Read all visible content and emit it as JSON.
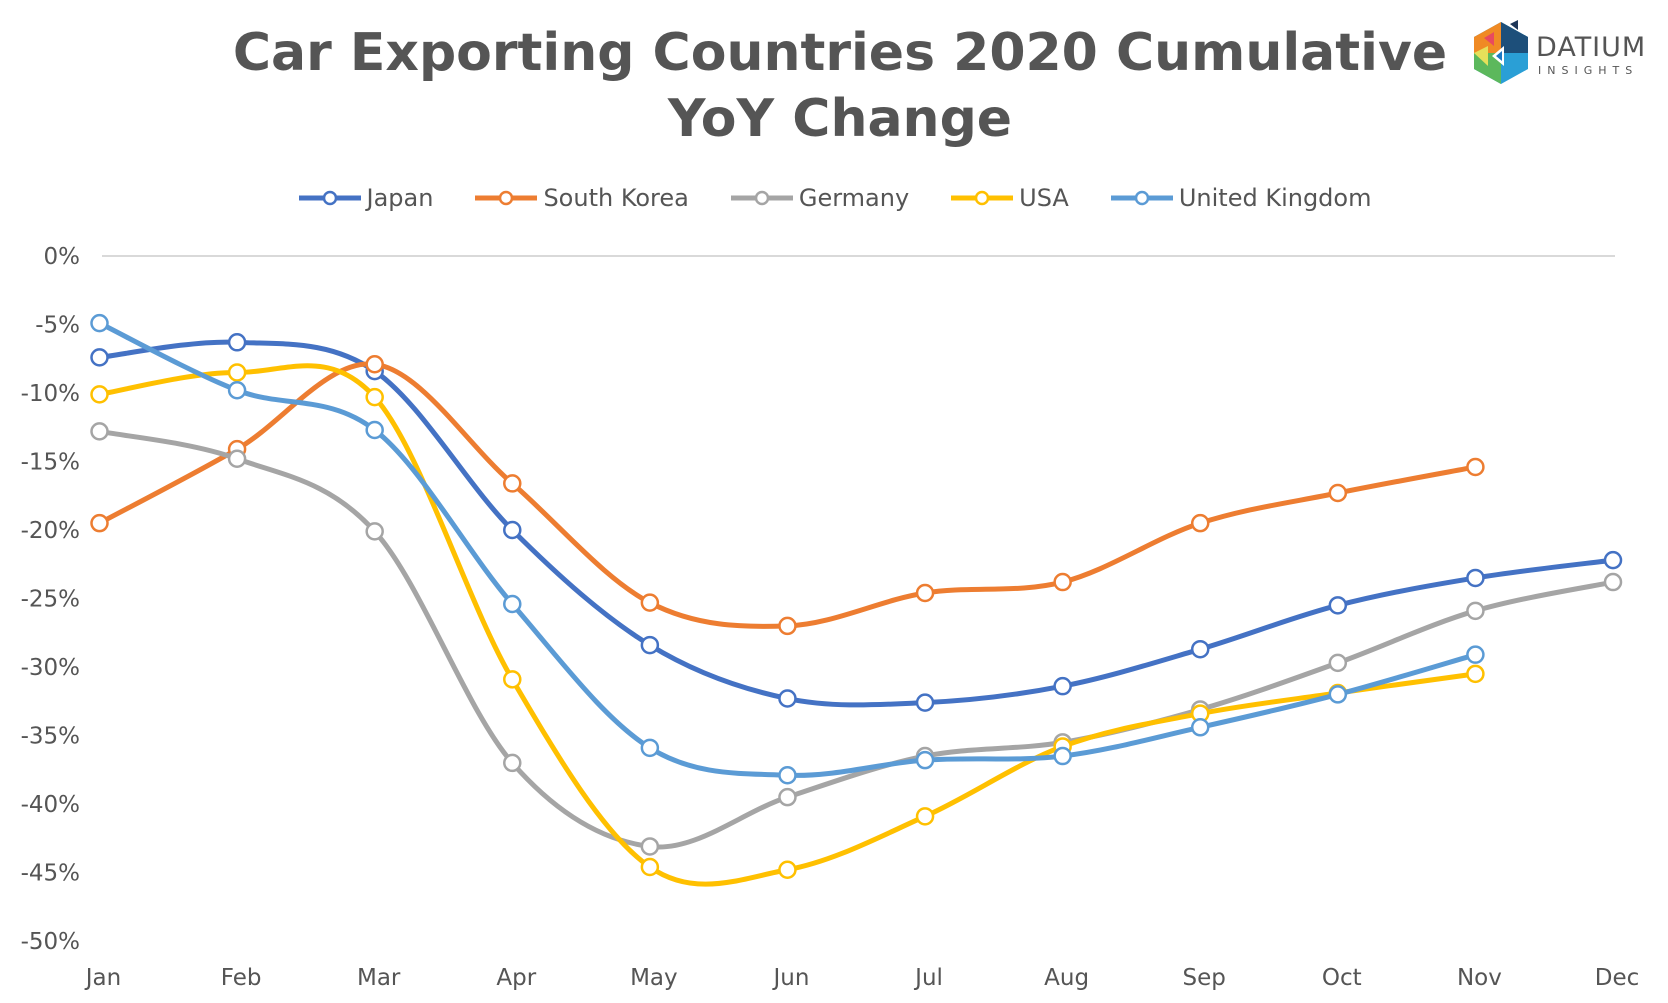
{
  "chart_data": {
    "type": "line",
    "title": "Car Exporting Countries 2020 Cumulative YoY Change",
    "xlabel": "",
    "ylabel": "",
    "categories": [
      "Jan",
      "Feb",
      "Mar",
      "Apr",
      "May",
      "Jun",
      "Jul",
      "Aug",
      "Sep",
      "Oct",
      "Nov",
      "Dec"
    ],
    "ylim": [
      -50,
      0
    ],
    "yticks": [
      0,
      -5,
      -10,
      -15,
      -20,
      -25,
      -30,
      -35,
      -40,
      -45,
      -50
    ],
    "ytick_labels": [
      "0%",
      "-5%",
      "-10%",
      "-15%",
      "-20%",
      "-25%",
      "-30%",
      "-35%",
      "-40%",
      "-45%",
      "-50%"
    ],
    "grid": "zero-line only",
    "legend_position": "top",
    "smooth": true,
    "series": [
      {
        "name": "Japan",
        "color": "#4472C4",
        "values": [
          -7.4,
          -6.3,
          -8.4,
          -20.0,
          -28.4,
          -32.3,
          -32.6,
          -31.4,
          -28.7,
          -25.5,
          -23.5,
          -22.2
        ]
      },
      {
        "name": "South Korea",
        "color": "#ED7D31",
        "values": [
          -19.5,
          -14.1,
          -7.9,
          -16.6,
          -25.3,
          -27.0,
          -24.6,
          -23.8,
          -19.5,
          -17.3,
          -15.4,
          null
        ]
      },
      {
        "name": "Germany",
        "color": "#A5A5A5",
        "values": [
          -12.8,
          -14.8,
          -20.1,
          -37.0,
          -43.1,
          -39.5,
          -36.5,
          -35.5,
          -33.1,
          -29.7,
          -25.9,
          -23.8
        ]
      },
      {
        "name": "USA",
        "color": "#FFC000",
        "values": [
          -10.1,
          -8.5,
          -10.3,
          -30.9,
          -44.6,
          -44.8,
          -40.9,
          -35.8,
          -33.4,
          -31.9,
          -30.5,
          null
        ]
      },
      {
        "name": "United Kingdom",
        "color": "#5B9BD5",
        "values": [
          -4.9,
          -9.8,
          -12.7,
          -25.4,
          -35.9,
          -37.9,
          -36.8,
          -36.5,
          -34.4,
          -32.0,
          -29.1,
          null
        ]
      }
    ]
  },
  "logo": {
    "name": "DATIUM",
    "sub": "INSIGHTS"
  }
}
